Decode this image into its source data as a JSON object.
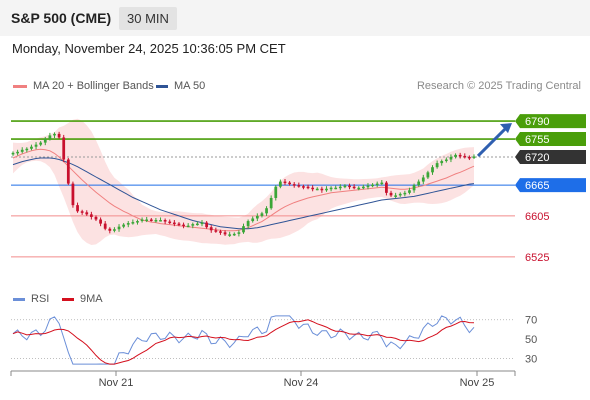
{
  "header": {
    "title": "S&P 500 (CME)",
    "timeframe": "30 MIN"
  },
  "datetime": "Monday, November 24, 2025 10:36:05 PM CET",
  "legend": {
    "ma20": "MA 20 + Bollinger Bands",
    "ma50": "MA 50",
    "rsi": "RSI",
    "rsi_ma": "9MA"
  },
  "research_label": "Research © 2025 Trading Central",
  "colors": {
    "ma20": "#f08080",
    "ma50": "#2f5496",
    "resistance": "#4a9e0a",
    "pivot": "#1e6ee8",
    "support": "#f28b8b",
    "last": "#333333",
    "up": "#3aa637",
    "down": "#c8102e",
    "band": "#fbd5d5",
    "arrow": "#2f5fb0",
    "rsi": "#6b8fd8",
    "rsi_ma": "#d4101e"
  },
  "chart_data": {
    "type": "candlestick",
    "y_range": [
      6480,
      6835
    ],
    "x_labels": [
      "Nov 21",
      "Nov 24",
      "Nov 25"
    ],
    "levels": [
      {
        "label": "6790",
        "value": 6790,
        "kind": "resistance"
      },
      {
        "label": "6755",
        "value": 6755,
        "kind": "resistance"
      },
      {
        "label": "6720",
        "value": 6720,
        "kind": "last"
      },
      {
        "label": "6665",
        "value": 6665,
        "kind": "pivot"
      },
      {
        "label": "6605",
        "value": 6605,
        "kind": "support"
      },
      {
        "label": "6525",
        "value": 6525,
        "kind": "support"
      }
    ],
    "forecast": {
      "from": 6722,
      "to": 6790
    },
    "close": [
      6728,
      6730,
      6734,
      6736,
      6740,
      6744,
      6748,
      6755,
      6762,
      6765,
      6758,
      6715,
      6668,
      6626,
      6614,
      6612,
      6608,
      6603,
      6598,
      6590,
      6580,
      6576,
      6579,
      6584,
      6588,
      6591,
      6593,
      6595,
      6598,
      6598,
      6597,
      6597,
      6597,
      6594,
      6592,
      6590,
      6588,
      6586,
      6586,
      6589,
      6590,
      6592,
      6583,
      6577,
      6575,
      6573,
      6569,
      6569,
      6570,
      6573,
      6585,
      6595,
      6600,
      6605,
      6610,
      6620,
      6640,
      6662,
      6672,
      6670,
      6667,
      6665,
      6663,
      6662,
      6660,
      6658,
      6658,
      6655,
      6658,
      6660,
      6660,
      6662,
      6664,
      6662,
      6660,
      6660,
      6662,
      6664,
      6666,
      6668,
      6670,
      6650,
      6645,
      6645,
      6648,
      6650,
      6655,
      6665,
      6672,
      6680,
      6690,
      6700,
      6708,
      6712,
      6715,
      6720,
      6724,
      6722,
      6720,
      6719,
      6721
    ],
    "ma20": [
      6718,
      6722,
      6726,
      6729,
      6732,
      6734,
      6735,
      6734,
      6732,
      6727,
      6720,
      6711,
      6702,
      6693,
      6684,
      6675,
      6667,
      6659,
      6651,
      6644,
      6637,
      6630,
      6624,
      6619,
      6614,
      6610,
      6605,
      6601,
      6597,
      6595,
      6593,
      6592,
      6590,
      6589,
      6588,
      6587,
      6586,
      6585,
      6584,
      6583,
      6582,
      6581,
      6580,
      6579,
      6578,
      6577,
      6576,
      6576,
      6576,
      6577,
      6579,
      6582,
      6586,
      6590,
      6594,
      6600,
      6606,
      6612,
      6618,
      6623,
      6627,
      6631,
      6634,
      6637,
      6640,
      6642,
      6644,
      6646,
      6648,
      6650,
      6651,
      6652,
      6653,
      6654,
      6655,
      6656,
      6657,
      6658,
      6659,
      6660,
      6661,
      6660,
      6659,
      6658,
      6657,
      6657,
      6658,
      6660,
      6662,
      6664,
      6667,
      6670,
      6673,
      6676,
      6679,
      6683,
      6687,
      6690,
      6694,
      6698,
      6702
    ],
    "ma50": [
      6705,
      6708,
      6711,
      6713,
      6715,
      6717,
      6718,
      6718,
      6718,
      6717,
      6715,
      6712,
      6709,
      6705,
      6701,
      6696,
      6691,
      6686,
      6681,
      6676,
      6671,
      6666,
      6661,
      6656,
      6651,
      6646,
      6641,
      6637,
      6633,
      6629,
      6625,
      6621,
      6617,
      6614,
      6611,
      6608,
      6605,
      6602,
      6599,
      6596,
      6594,
      6592,
      6590,
      6588,
      6586,
      6584,
      6583,
      6582,
      6581,
      6580,
      6580,
      6580,
      6581,
      6582,
      6584,
      6586,
      6588,
      6590,
      6592,
      6594,
      6596,
      6598,
      6600,
      6602,
      6604,
      6606,
      6608,
      6610,
      6612,
      6614,
      6616,
      6618,
      6620,
      6622,
      6624,
      6626,
      6628,
      6630,
      6632,
      6634,
      6636,
      6637,
      6638,
      6639,
      6640,
      6641,
      6642,
      6643,
      6645,
      6647,
      6649,
      6651,
      6653,
      6655,
      6657,
      6659,
      6661,
      6663,
      6665,
      6667,
      6668
    ],
    "rsi": {
      "y_range": [
        20,
        78
      ],
      "ticks": [
        "70",
        "50",
        "30"
      ],
      "tick_values": [
        70,
        50,
        30
      ]
    }
  }
}
